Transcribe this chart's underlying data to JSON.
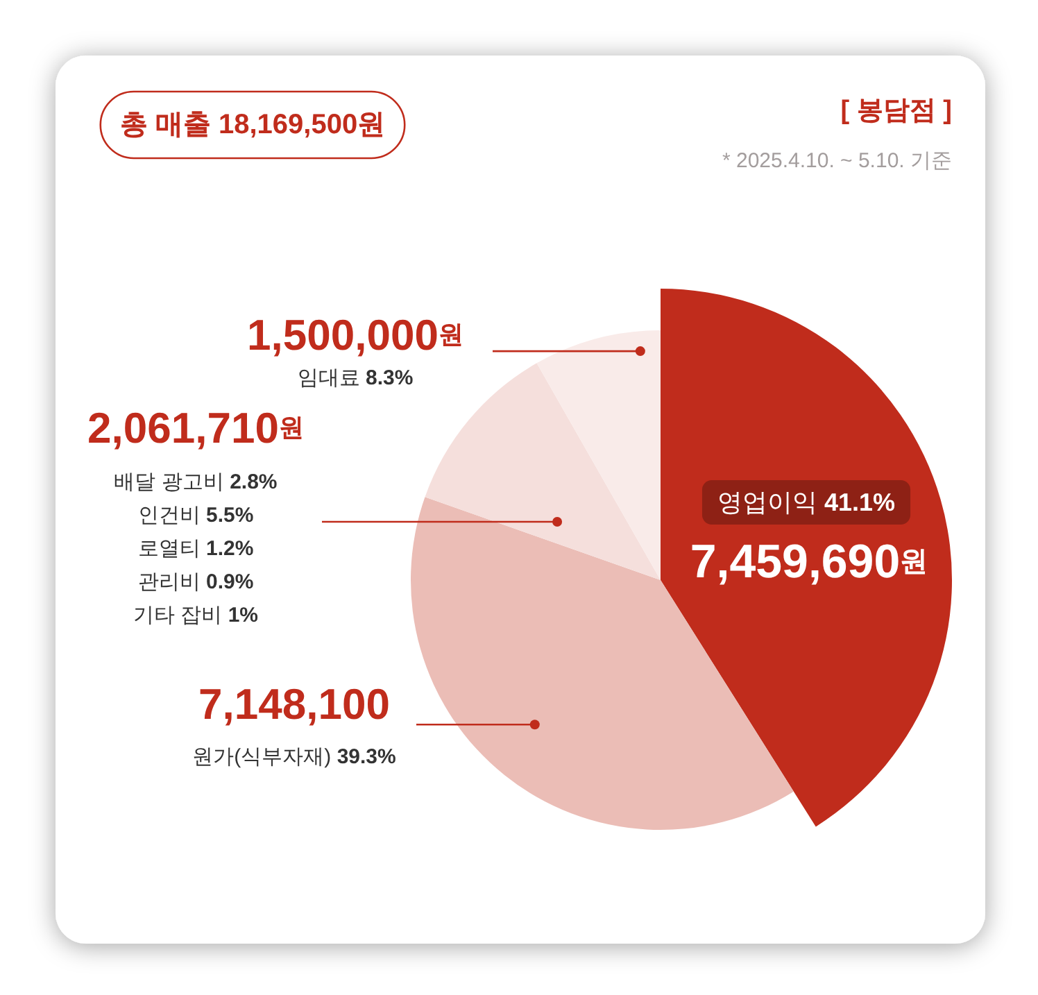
{
  "chart_data": {
    "type": "pie",
    "title": "[ 봉담점 ]",
    "subtitle": "* 2025.4.10. ~ 5.10. 기준",
    "annotations": [
      "총 매출 18,169,500원"
    ],
    "categories": [
      "영업이익 41.1%",
      "원가(식부자재) 39.3%",
      "배달 광고비 2.8%\n인건비 5.5%\n로열티 1.2%\n관리비 0.9%\n기타 잡비 1%",
      "임대료 8.3%"
    ],
    "values": [
      7459690,
      7148100,
      2061710,
      1500000
    ],
    "value_labels": [
      "7,459,690원",
      "7,148,100",
      "2,061,710원",
      "1,500,000원"
    ],
    "colors": [
      "#c02c1c",
      "#ebbdb6",
      "#f5dfdc",
      "#f9ebe9"
    ]
  }
}
